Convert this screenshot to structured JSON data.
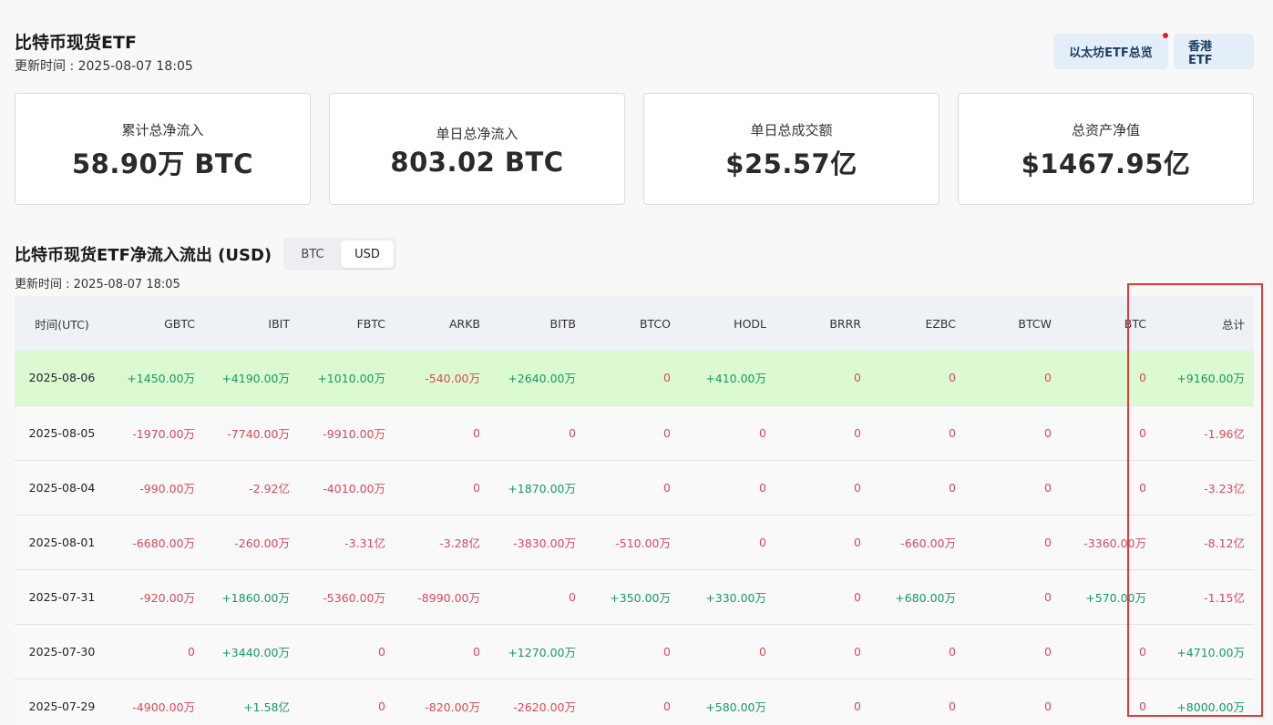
{
  "header": {
    "title": "比特币现货ETF",
    "update_time": "更新时间 : 2025-08-07 18:05",
    "buttons": [
      "以太坊ETF总览",
      "香港 ETF"
    ]
  },
  "stats": [
    {
      "label": "累计总净流入",
      "value": "58.90万 BTC"
    },
    {
      "label": "单日总净流入",
      "value": "803.02 BTC"
    },
    {
      "label": "单日总成交额",
      "value": "$25.57亿"
    },
    {
      "label": "总资产净值",
      "value": "$1467.95亿"
    }
  ],
  "section": {
    "title": "比特币现货ETF净流入流出 (USD)",
    "toggle": [
      "BTC",
      "USD"
    ],
    "toggle_active": "USD",
    "update_time": "更新时间 : 2025-08-07 18:05"
  },
  "colors": {
    "positive": "#169a62",
    "negative": "#d84a5a",
    "highlight": "#dcfad2",
    "annotation_box": "#e53935"
  },
  "table": {
    "columns": [
      "时间(UTC)",
      "GBTC",
      "IBIT",
      "FBTC",
      "ARKB",
      "BITB",
      "BTCO",
      "HODL",
      "BRRR",
      "EZBC",
      "BTCW",
      "BTC",
      "总计"
    ],
    "rows": [
      {
        "date": "2025-08-06",
        "highlight": true,
        "cells": [
          "+1450.00万",
          "+4190.00万",
          "+1010.00万",
          "-540.00万",
          "+2640.00万",
          "0",
          "+410.00万",
          "0",
          "0",
          "0",
          "0",
          "+9160.00万"
        ]
      },
      {
        "date": "2025-08-05",
        "highlight": false,
        "cells": [
          "-1970.00万",
          "-7740.00万",
          "-9910.00万",
          "0",
          "0",
          "0",
          "0",
          "0",
          "0",
          "0",
          "0",
          "-1.96亿"
        ]
      },
      {
        "date": "2025-08-04",
        "highlight": false,
        "cells": [
          "-990.00万",
          "-2.92亿",
          "-4010.00万",
          "0",
          "+1870.00万",
          "0",
          "0",
          "0",
          "0",
          "0",
          "0",
          "-3.23亿"
        ]
      },
      {
        "date": "2025-08-01",
        "highlight": false,
        "cells": [
          "-6680.00万",
          "-260.00万",
          "-3.31亿",
          "-3.28亿",
          "-3830.00万",
          "-510.00万",
          "0",
          "0",
          "-660.00万",
          "0",
          "-3360.00万",
          "-8.12亿"
        ]
      },
      {
        "date": "2025-07-31",
        "highlight": false,
        "cells": [
          "-920.00万",
          "+1860.00万",
          "-5360.00万",
          "-8990.00万",
          "0",
          "+350.00万",
          "+330.00万",
          "0",
          "+680.00万",
          "0",
          "+570.00万",
          "-1.15亿"
        ]
      },
      {
        "date": "2025-07-30",
        "highlight": false,
        "cells": [
          "0",
          "+3440.00万",
          "0",
          "0",
          "+1270.00万",
          "0",
          "0",
          "0",
          "0",
          "0",
          "0",
          "+4710.00万"
        ]
      },
      {
        "date": "2025-07-29",
        "highlight": false,
        "cells": [
          "-4900.00万",
          "+1.58亿",
          "0",
          "-820.00万",
          "-2620.00万",
          "0",
          "+580.00万",
          "0",
          "0",
          "0",
          "0",
          "+8000.00万"
        ]
      }
    ]
  }
}
